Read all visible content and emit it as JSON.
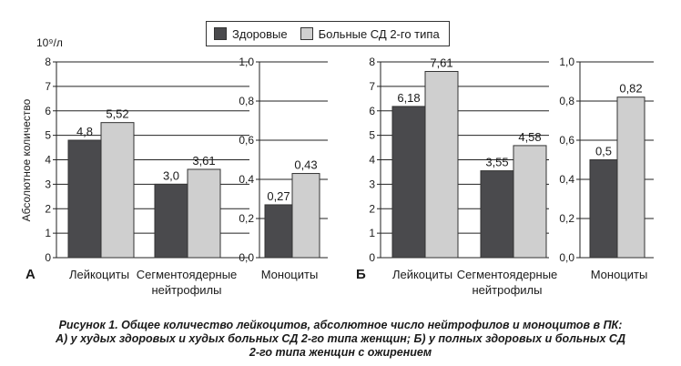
{
  "legend": {
    "healthy": "Здоровые",
    "diabetes": "Больные СД 2-го типа"
  },
  "colors": {
    "healthy": "#4a4a4d",
    "diabetes": "#cfcfcf"
  },
  "caption": {
    "line1": "Рисунок 1. Общее количество лейкоцитов, абсолютное число нейтрофилов и моноцитов в ПК:",
    "line2": "А) у худых здоровых и худых больных СД 2-го типа женщин; Б) у полных здоровых и больных СД",
    "line3": "2-го типа женщин с ожирением"
  },
  "chart_data": [
    {
      "type": "bar",
      "panel_label": "А",
      "ylabel": "Абсолютное количество",
      "yunit": "10⁹/л",
      "ylim": [
        0,
        8
      ],
      "yticks": [
        "0",
        "1",
        "2",
        "3",
        "4",
        "5",
        "6",
        "7",
        "8"
      ],
      "categories": [
        "Лейкоциты",
        "Сегментоядерные\nнейтрофилы"
      ],
      "series": [
        {
          "name": "Здоровые",
          "values": [
            4.8,
            3.0
          ],
          "labels": [
            "4,8",
            "3,0"
          ]
        },
        {
          "name": "Больные СД 2-го типа",
          "values": [
            5.52,
            3.61
          ],
          "labels": [
            "5,52",
            "3,61"
          ]
        }
      ]
    },
    {
      "type": "bar",
      "ylim": [
        0,
        1.0
      ],
      "yticks": [
        "0,0",
        "0,2",
        "0,4",
        "0,6",
        "0,8",
        "1,0"
      ],
      "categories": [
        "Моноциты"
      ],
      "series": [
        {
          "name": "Здоровые",
          "values": [
            0.27
          ],
          "labels": [
            "0,27"
          ]
        },
        {
          "name": "Больные СД 2-го типа",
          "values": [
            0.43
          ],
          "labels": [
            "0,43"
          ]
        }
      ]
    },
    {
      "type": "bar",
      "panel_label": "Б",
      "ylim": [
        0,
        8
      ],
      "yticks": [
        "0",
        "1",
        "2",
        "3",
        "4",
        "5",
        "6",
        "7",
        "8"
      ],
      "categories": [
        "Лейкоциты",
        "Сегментоядерные\nнейтрофилы"
      ],
      "series": [
        {
          "name": "Здоровые",
          "values": [
            6.18,
            3.55
          ],
          "labels": [
            "6,18",
            "3,55"
          ]
        },
        {
          "name": "Больные СД 2-го типа",
          "values": [
            7.61,
            4.58
          ],
          "labels": [
            "7,61",
            "4,58"
          ]
        }
      ]
    },
    {
      "type": "bar",
      "ylim": [
        0,
        1.0
      ],
      "yticks": [
        "0,0",
        "0,2",
        "0,4",
        "0,6",
        "0,8",
        "1,0"
      ],
      "categories": [
        "Моноциты"
      ],
      "series": [
        {
          "name": "Здоровые",
          "values": [
            0.5
          ],
          "labels": [
            "0,5"
          ]
        },
        {
          "name": "Больные СД 2-го типа",
          "values": [
            0.82
          ],
          "labels": [
            "0,82"
          ]
        }
      ]
    }
  ]
}
